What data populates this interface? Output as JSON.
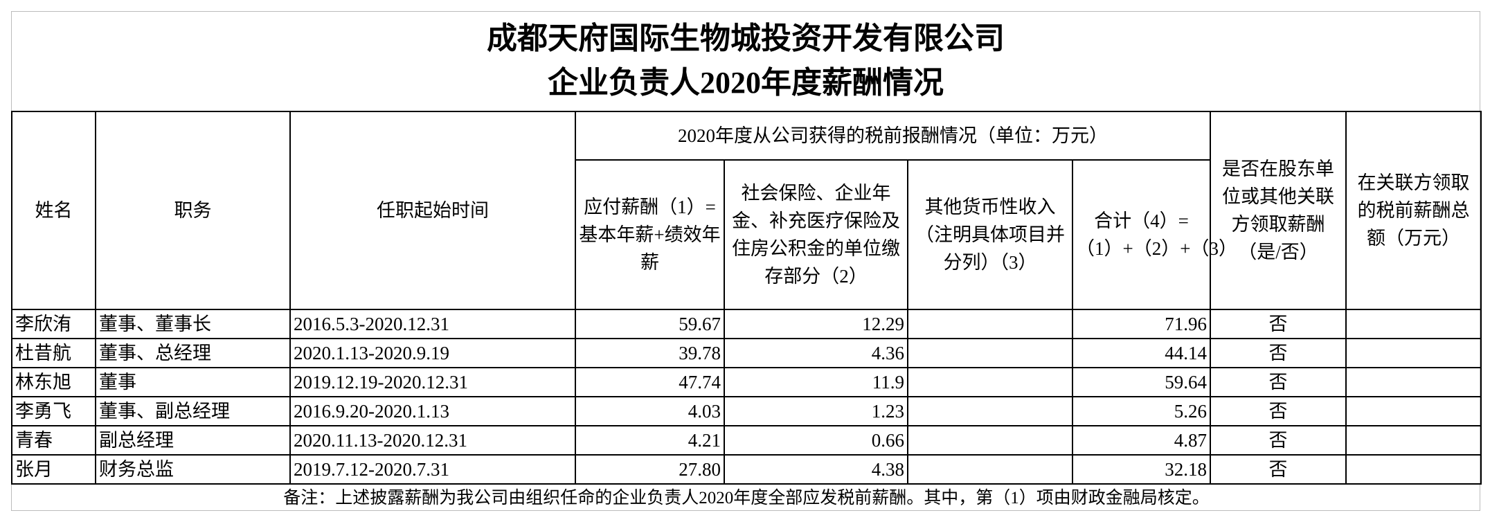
{
  "title": {
    "line1": "成都天府国际生物城投资开发有限公司",
    "line2": "企业负责人2020年度薪酬情况"
  },
  "headers": {
    "name": "姓名",
    "position": "职务",
    "term": "任职起始时间",
    "group": "2020年度从公司获得的税前报酬情况（单位：万元）",
    "salary": "应付薪酬（1）=基本年薪+绩效年薪",
    "insurance": "社会保险、企业年金、补充医疗保险及住房公积金的单位缴存部分（2）",
    "other": "其他货币性收入（注明具体项目并分列）（3）",
    "total": "合计（4）=（1）+（2）+（3）",
    "related_flag": "是否在股东单位或其他关联方领取薪酬（是/否）",
    "related_amount": "在关联方领取的税前薪酬总额（万元）"
  },
  "rows": [
    {
      "name": "李欣洧",
      "position": "董事、董事长",
      "term": "2016.5.3-2020.12.31",
      "salary": "59.67",
      "insurance": "12.29",
      "other": "",
      "total": "71.96",
      "related_flag": "否",
      "related_amount": ""
    },
    {
      "name": "杜昔航",
      "position": "董事、总经理",
      "term": "2020.1.13-2020.9.19",
      "salary": "39.78",
      "insurance": "4.36",
      "other": "",
      "total": "44.14",
      "related_flag": "否",
      "related_amount": ""
    },
    {
      "name": "林东旭",
      "position": "董事",
      "term": "2019.12.19-2020.12.31",
      "salary": "47.74",
      "insurance": "11.9",
      "other": "",
      "total": "59.64",
      "related_flag": "否",
      "related_amount": ""
    },
    {
      "name": "李勇飞",
      "position": "董事、副总经理",
      "term": "2016.9.20-2020.1.13",
      "salary": "4.03",
      "insurance": "1.23",
      "other": "",
      "total": "5.26",
      "related_flag": "否",
      "related_amount": ""
    },
    {
      "name": "青春",
      "position": "副总经理",
      "term": "2020.11.13-2020.12.31",
      "salary": "4.21",
      "insurance": "0.66",
      "other": "",
      "total": "4.87",
      "related_flag": "否",
      "related_amount": ""
    },
    {
      "name": "张月",
      "position": "财务总监",
      "term": "2019.7.12-2020.7.31",
      "salary": "27.80",
      "insurance": "4.38",
      "other": "",
      "total": "32.18",
      "related_flag": "否",
      "related_amount": ""
    }
  ],
  "note": "备注：上述披露薪酬为我公司由组织任命的企业负责人2020年度全部应发税前薪酬。其中，第（1）项由财政金融局核定。"
}
